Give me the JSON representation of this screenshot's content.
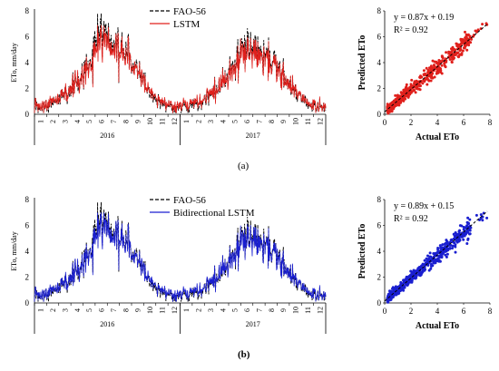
{
  "chart_data": [
    {
      "id": "a-ts",
      "type": "line",
      "ylabel": "ETo, mm/day",
      "ylim": [
        0,
        8
      ],
      "yticks": [
        0,
        2,
        4,
        6,
        8
      ],
      "x_month_labels": [
        "1",
        "2",
        "3",
        "4",
        "5",
        "6",
        "7",
        "8",
        "9",
        "10",
        "11",
        "12",
        "1",
        "2",
        "3",
        "4",
        "5",
        "6",
        "7",
        "8",
        "9",
        "10",
        "11",
        "12"
      ],
      "x_year_labels": [
        "2016",
        "2017"
      ],
      "legend_position": "top-center",
      "series": [
        {
          "name": "FAO-56",
          "color": "#000000",
          "dash": true,
          "monthly_values": [
            0.6,
            0.8,
            1.6,
            2.6,
            3.8,
            6.2,
            5.2,
            4.6,
            3.2,
            1.8,
            0.8,
            0.5,
            0.6,
            0.9,
            1.4,
            2.4,
            3.8,
            5.6,
            4.8,
            4.2,
            3.0,
            1.6,
            0.8,
            0.5
          ],
          "peak": 7.8
        },
        {
          "name": "LSTM",
          "color": "#e0201c",
          "dash": false,
          "monthly_values": [
            0.7,
            0.9,
            1.7,
            2.6,
            3.6,
            5.6,
            5.0,
            4.4,
            3.1,
            1.9,
            0.9,
            0.6,
            0.7,
            1.0,
            1.5,
            2.4,
            3.6,
            5.2,
            4.6,
            4.0,
            2.9,
            1.7,
            0.9,
            0.6
          ],
          "peak": 6.9
        }
      ]
    },
    {
      "id": "a-scatter",
      "type": "scatter",
      "xlabel": "Actual ETo",
      "ylabel": "Predicted ETo",
      "xlim": [
        0,
        8
      ],
      "ylim": [
        0,
        8
      ],
      "ticks": [
        0,
        2,
        4,
        6,
        8
      ],
      "color": "#e0201c",
      "fit": {
        "slope": 0.87,
        "intercept": 0.19
      },
      "equation": "y = 0.87x + 0.19",
      "r2": "R² = 0.92",
      "point_x_range": [
        0.2,
        7.8
      ]
    },
    {
      "id": "b-ts",
      "type": "line",
      "ylabel": "ETo, mm/day",
      "ylim": [
        0,
        8
      ],
      "yticks": [
        0,
        2,
        4,
        6,
        8
      ],
      "x_month_labels": [
        "1",
        "2",
        "3",
        "4",
        "5",
        "6",
        "7",
        "8",
        "9",
        "10",
        "11",
        "12",
        "1",
        "2",
        "3",
        "4",
        "5",
        "6",
        "7",
        "8",
        "9",
        "10",
        "11",
        "12"
      ],
      "x_year_labels": [
        "2016",
        "2017"
      ],
      "legend_position": "top-center",
      "series": [
        {
          "name": "FAO-56",
          "color": "#000000",
          "dash": true,
          "monthly_values": [
            0.6,
            0.8,
            1.6,
            2.6,
            3.8,
            6.2,
            5.2,
            4.6,
            3.2,
            1.8,
            0.8,
            0.5,
            0.6,
            0.9,
            1.4,
            2.4,
            3.8,
            5.6,
            4.8,
            4.2,
            3.0,
            1.6,
            0.8,
            0.5
          ],
          "peak": 7.8
        },
        {
          "name": "Bidirectional LSTM",
          "color": "#1a1fd0",
          "dash": false,
          "monthly_values": [
            0.7,
            0.9,
            1.7,
            2.6,
            3.7,
            5.8,
            5.1,
            4.5,
            3.1,
            1.9,
            0.9,
            0.6,
            0.7,
            1.0,
            1.5,
            2.5,
            3.7,
            5.3,
            4.7,
            4.1,
            2.9,
            1.7,
            0.9,
            0.6
          ],
          "peak": 7.0
        }
      ]
    },
    {
      "id": "b-scatter",
      "type": "scatter",
      "xlabel": "Actual ETo",
      "ylabel": "Predicted ETo",
      "xlim": [
        0,
        8
      ],
      "ylim": [
        0,
        8
      ],
      "ticks": [
        0,
        2,
        4,
        6,
        8
      ],
      "color": "#1a1fd0",
      "fit": {
        "slope": 0.89,
        "intercept": 0.15
      },
      "equation": "y = 0.89x + 0.15",
      "r2": "R² = 0.92",
      "point_x_range": [
        0.2,
        7.8
      ]
    }
  ],
  "captions": {
    "a": "(a)",
    "b": "(b)"
  }
}
